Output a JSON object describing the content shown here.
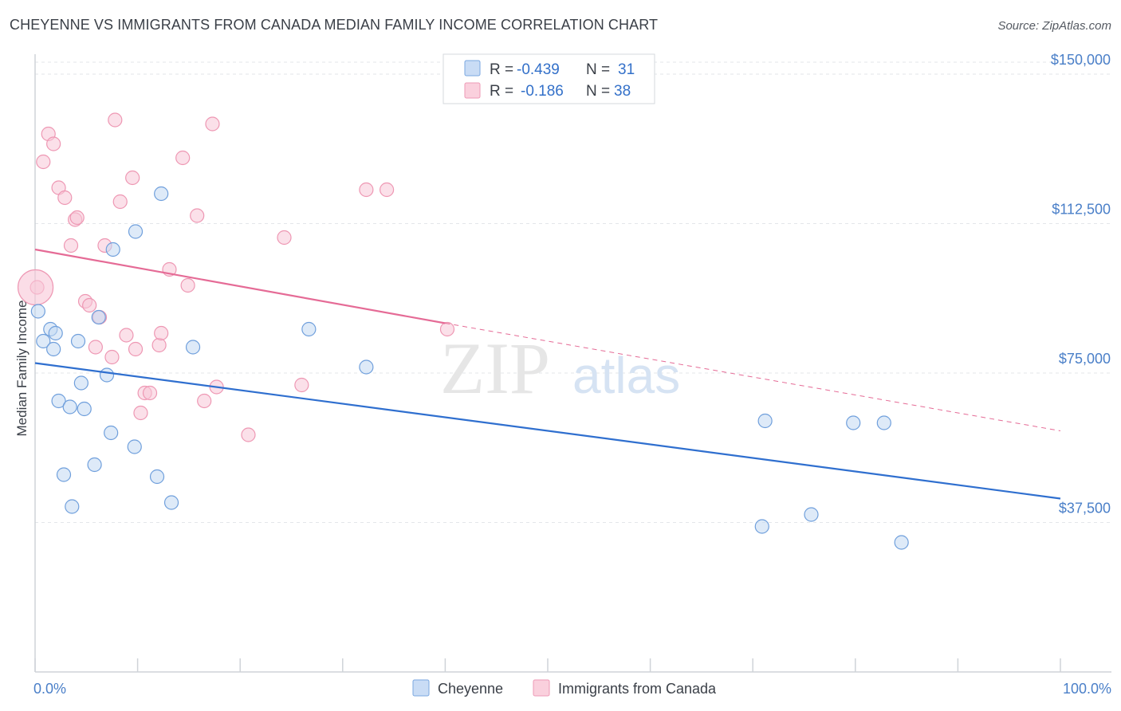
{
  "title": "CHEYENNE VS IMMIGRANTS FROM CANADA MEDIAN FAMILY INCOME CORRELATION CHART",
  "source": "Source: ZipAtlas.com",
  "watermark": {
    "zip": "ZIP",
    "atlas": "atlas"
  },
  "legend": {
    "r_label": "R =",
    "n_label": "N =",
    "items": [
      {
        "r": "-0.439",
        "n": "31"
      },
      {
        "r": "-0.186",
        "n": "38"
      }
    ]
  },
  "chart_data": {
    "type": "scatter",
    "title": "CHEYENNE VS IMMIGRANTS FROM CANADA MEDIAN FAMILY INCOME CORRELATION CHART",
    "xlabel": "",
    "ylabel": "Median Family Income",
    "xlim": [
      0,
      100
    ],
    "ylim": [
      0,
      157000
    ],
    "x_tick_labels": [
      "0.0%",
      "100.0%"
    ],
    "y_ticks": [
      37500,
      75000,
      112500,
      150000
    ],
    "y_tick_labels": [
      "$37,500",
      "$75,000",
      "$112,500",
      "$150,000"
    ],
    "colors": {
      "cheyenne": "#5b93d9",
      "canada": "#ee8fb0",
      "cheyenne_line": "#2f6fcf",
      "canada_line": "#e56b96"
    },
    "series": [
      {
        "name": "Cheyenne",
        "trend": {
          "x0": 0,
          "y0": 77500,
          "x1": 100,
          "y1": 43500
        },
        "points": [
          [
            0.3,
            90500
          ],
          [
            0.8,
            83000
          ],
          [
            1.5,
            86000
          ],
          [
            1.8,
            81000
          ],
          [
            2.0,
            85000
          ],
          [
            2.3,
            68000
          ],
          [
            2.8,
            49500
          ],
          [
            3.4,
            66500
          ],
          [
            3.6,
            41500
          ],
          [
            4.2,
            83000
          ],
          [
            4.5,
            72500
          ],
          [
            4.8,
            66000
          ],
          [
            5.8,
            52000
          ],
          [
            6.2,
            89000
          ],
          [
            7.0,
            74500
          ],
          [
            7.4,
            60000
          ],
          [
            9.7,
            56500
          ],
          [
            9.8,
            110500
          ],
          [
            11.9,
            49000
          ],
          [
            12.3,
            120000
          ],
          [
            13.3,
            42500
          ],
          [
            15.4,
            81500
          ],
          [
            26.7,
            86000
          ],
          [
            32.3,
            76500
          ],
          [
            70.9,
            36500
          ],
          [
            71.2,
            63000
          ],
          [
            75.7,
            39500
          ],
          [
            79.8,
            62500
          ],
          [
            82.8,
            62500
          ],
          [
            84.5,
            32500
          ],
          [
            7.6,
            106000
          ]
        ]
      },
      {
        "name": "Immigrants from Canada",
        "trend": {
          "x0": 0,
          "y0": 106000,
          "x1": 40,
          "y1": 87500,
          "x2": 100,
          "y2": 60500
        },
        "points": [
          [
            0.2,
            96500
          ],
          [
            0.8,
            128000
          ],
          [
            1.3,
            135000
          ],
          [
            1.8,
            132500
          ],
          [
            2.3,
            121500
          ],
          [
            2.9,
            119000
          ],
          [
            3.5,
            107000
          ],
          [
            3.9,
            113500
          ],
          [
            4.1,
            114000
          ],
          [
            4.9,
            93000
          ],
          [
            5.3,
            92000
          ],
          [
            5.9,
            81500
          ],
          [
            6.3,
            89000
          ],
          [
            6.8,
            107000
          ],
          [
            7.5,
            79000
          ],
          [
            7.8,
            138500
          ],
          [
            8.3,
            118000
          ],
          [
            8.9,
            84500
          ],
          [
            9.5,
            124000
          ],
          [
            9.8,
            81000
          ],
          [
            10.3,
            65000
          ],
          [
            10.7,
            70000
          ],
          [
            11.2,
            70000
          ],
          [
            12.1,
            82000
          ],
          [
            12.3,
            85000
          ],
          [
            13.1,
            101000
          ],
          [
            14.4,
            129000
          ],
          [
            14.9,
            97000
          ],
          [
            15.8,
            114500
          ],
          [
            16.5,
            68000
          ],
          [
            17.3,
            137500
          ],
          [
            17.7,
            71500
          ],
          [
            20.8,
            59500
          ],
          [
            24.3,
            109000
          ],
          [
            26.0,
            72000
          ],
          [
            32.3,
            121000
          ],
          [
            34.3,
            121000
          ],
          [
            40.2,
            86000
          ]
        ]
      }
    ]
  },
  "bottom_legend": [
    "Cheyenne",
    "Immigrants from Canada"
  ]
}
